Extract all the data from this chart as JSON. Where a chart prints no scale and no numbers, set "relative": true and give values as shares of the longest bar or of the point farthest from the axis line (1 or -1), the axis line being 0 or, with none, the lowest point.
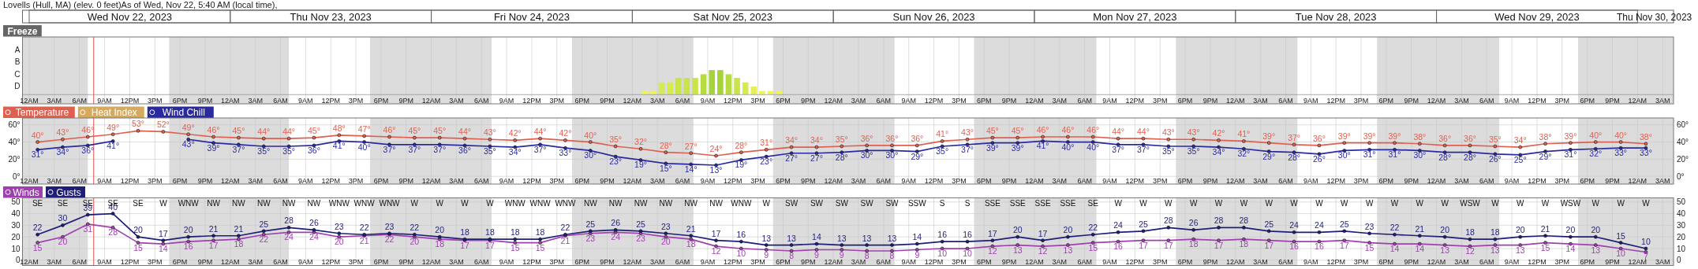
{
  "chart_data": [
    {
      "type": "bar",
      "relative": true,
      "title": "Lovells (Hull, MA) (elev. 0 feet)As of Wed, Nov 22, 5:40 AM (local time),",
      "subtitle": "Freeze",
      "annotations": [
        "A",
        "B",
        "C",
        "D"
      ],
      "x": [
        "2023-11-25T01:30",
        "2023-11-25T02:30",
        "2023-11-25T03:30",
        "2023-11-25T04:30",
        "2023-11-25T05:30",
        "2023-11-25T06:30",
        "2023-11-25T07:30",
        "2023-11-25T08:30",
        "2023-11-25T09:30",
        "2023-11-25T10:30",
        "2023-11-25T11:30",
        "2023-11-25T12:30",
        "2023-11-25T13:30",
        "2023-11-25T14:30",
        "2023-11-25T15:30",
        "2023-11-25T16:30",
        "2023-11-25T17:30"
      ],
      "values": [
        0.15,
        0.15,
        0.5,
        0.5,
        0.68,
        0.68,
        0.68,
        0.83,
        1,
        1,
        0.83,
        0.68,
        0.5,
        0.33,
        0.15,
        0.15,
        0.15
      ],
      "colors": [
        "#eef55a",
        "#eef55a",
        "#d6eb52",
        "#d6eb52",
        "#c8e44a",
        "#c8e44a",
        "#c8e44a",
        "#b6dc42",
        "#a4d43a",
        "#a4d43a",
        "#b6dc42",
        "#c8e44a",
        "#d6eb52",
        "#e4f055",
        "#eef55a",
        "#eef55a",
        "#eef55a"
      ],
      "xlim": [
        "2023-11-21T23:12",
        "2023-11-30T04:18"
      ],
      "xticks": [
        {
          "value": "2023-11-22T00:00",
          "label": "12AM"
        },
        {
          "value": "2023-11-22T03:00",
          "label": "3AM"
        },
        {
          "value": "2023-11-22T06:00",
          "label": "6AM"
        },
        {
          "value": "2023-11-22T09:00",
          "label": "9AM"
        },
        {
          "value": "2023-11-22T12:00",
          "label": "12PM"
        },
        {
          "value": "2023-11-22T15:00",
          "label": "3PM"
        },
        {
          "value": "2023-11-22T18:00",
          "label": "6PM"
        },
        {
          "value": "2023-11-22T21:00",
          "label": "9PM"
        },
        {
          "value": "2023-11-23T00:00",
          "label": "12AM"
        },
        {
          "value": "2023-11-23T03:00",
          "label": "3AM"
        },
        {
          "value": "2023-11-23T06:00",
          "label": "6AM"
        },
        {
          "value": "2023-11-23T09:00",
          "label": "9AM"
        },
        {
          "value": "2023-11-23T12:00",
          "label": "12PM"
        },
        {
          "value": "2023-11-23T15:00",
          "label": "3PM"
        },
        {
          "value": "2023-11-23T18:00",
          "label": "6PM"
        },
        {
          "value": "2023-11-23T21:00",
          "label": "9PM"
        },
        {
          "value": "2023-11-24T00:00",
          "label": "12AM"
        },
        {
          "value": "2023-11-24T03:00",
          "label": "3AM"
        },
        {
          "value": "2023-11-24T06:00",
          "label": "6AM"
        },
        {
          "value": "2023-11-24T09:00",
          "label": "9AM"
        },
        {
          "value": "2023-11-24T12:00",
          "label": "12PM"
        },
        {
          "value": "2023-11-24T15:00",
          "label": "3PM"
        },
        {
          "value": "2023-11-24T18:00",
          "label": "6PM"
        },
        {
          "value": "2023-11-24T21:00",
          "label": "9PM"
        },
        {
          "value": "2023-11-25T00:00",
          "label": "12AM"
        },
        {
          "value": "2023-11-25T03:00",
          "label": "3AM"
        },
        {
          "value": "2023-11-25T06:00",
          "label": "6AM"
        },
        {
          "value": "2023-11-25T09:00",
          "label": "9AM"
        },
        {
          "value": "2023-11-25T12:00",
          "label": "12PM"
        },
        {
          "value": "2023-11-25T15:00",
          "label": "3PM"
        },
        {
          "value": "2023-11-25T18:00",
          "label": "6PM"
        },
        {
          "value": "2023-11-25T21:00",
          "label": "9PM"
        },
        {
          "value": "2023-11-26T00:00",
          "label": "12AM"
        },
        {
          "value": "2023-11-26T03:00",
          "label": "3AM"
        },
        {
          "value": "2023-11-26T06:00",
          "label": "6AM"
        },
        {
          "value": "2023-11-26T09:00",
          "label": "9AM"
        },
        {
          "value": "2023-11-26T12:00",
          "label": "12PM"
        },
        {
          "value": "2023-11-26T15:00",
          "label": "3PM"
        },
        {
          "value": "2023-11-26T18:00",
          "label": "6PM"
        },
        {
          "value": "2023-11-26T21:00",
          "label": "9PM"
        },
        {
          "value": "2023-11-27T00:00",
          "label": "12AM"
        },
        {
          "value": "2023-11-27T03:00",
          "label": "3AM"
        },
        {
          "value": "2023-11-27T06:00",
          "label": "6AM"
        },
        {
          "value": "2023-11-27T09:00",
          "label": "9AM"
        },
        {
          "value": "2023-11-27T12:00",
          "label": "12PM"
        },
        {
          "value": "2023-11-27T15:00",
          "label": "3PM"
        },
        {
          "value": "2023-11-27T18:00",
          "label": "6PM"
        },
        {
          "value": "2023-11-27T21:00",
          "label": "9PM"
        },
        {
          "value": "2023-11-28T00:00",
          "label": "12AM"
        },
        {
          "value": "2023-11-28T03:00",
          "label": "3AM"
        },
        {
          "value": "2023-11-28T06:00",
          "label": "6AM"
        },
        {
          "value": "2023-11-28T09:00",
          "label": "9AM"
        },
        {
          "value": "2023-11-28T12:00",
          "label": "12PM"
        },
        {
          "value": "2023-11-28T15:00",
          "label": "3PM"
        },
        {
          "value": "2023-11-28T18:00",
          "label": "6PM"
        },
        {
          "value": "2023-11-28T21:00",
          "label": "9PM"
        },
        {
          "value": "2023-11-29T00:00",
          "label": "12AM"
        },
        {
          "value": "2023-11-29T03:00",
          "label": "3AM"
        },
        {
          "value": "2023-11-29T06:00",
          "label": "6AM"
        },
        {
          "value": "2023-11-29T09:00",
          "label": "9AM"
        },
        {
          "value": "2023-11-29T12:00",
          "label": "12PM"
        },
        {
          "value": "2023-11-29T15:00",
          "label": "3PM"
        },
        {
          "value": "2023-11-29T18:00",
          "label": "6PM"
        },
        {
          "value": "2023-11-29T21:00",
          "label": "9PM"
        },
        {
          "value": "2023-11-30T00:00",
          "label": "12AM"
        },
        {
          "value": "2023-11-30T03:00",
          "label": "3AM"
        }
      ],
      "x2lim": [
        "2023-11-21T23:12",
        "2023-11-30T04:18"
      ],
      "x2ticks": [
        {
          "value": "2023-11-22T12:00",
          "label": "Wed Nov 22, 2023"
        },
        {
          "value": "2023-11-23T12:00",
          "label": "Thu Nov 23, 2023"
        },
        {
          "value": "2023-11-24T12:00",
          "label": "Fri Nov 24, 2023"
        },
        {
          "value": "2023-11-25T12:00",
          "label": "Sat Nov 25, 2023"
        },
        {
          "value": "2023-11-26T12:00",
          "label": "Sun Nov 26, 2023"
        },
        {
          "value": "2023-11-27T12:00",
          "label": "Mon Nov 27, 2023"
        },
        {
          "value": "2023-11-28T12:00",
          "label": "Tue Nov 28, 2023"
        },
        {
          "value": "2023-11-29T12:00",
          "label": "Wed Nov 29, 2023"
        },
        {
          "value": "2023-11-30T02:00",
          "label": "Thu Nov 30, 2023"
        }
      ],
      "grid": "x",
      "bands": [
        {
          "axis": "x",
          "from": "2023-11-21T23:12",
          "to": "2023-11-22T07:00",
          "color": "#dcdcdc"
        },
        {
          "axis": "x",
          "from": "2023-11-22T16:42",
          "to": "2023-11-23T07:00",
          "color": "#dcdcdc"
        },
        {
          "axis": "x",
          "from": "2023-11-23T16:42",
          "to": "2023-11-24T07:12",
          "color": "#dcdcdc"
        },
        {
          "axis": "x",
          "from": "2023-11-24T16:48",
          "to": "2023-11-25T07:18",
          "color": "#dcdcdc"
        },
        {
          "axis": "x",
          "from": "2023-11-25T16:48",
          "to": "2023-11-26T07:18",
          "color": "#dcdcdc"
        },
        {
          "axis": "x",
          "from": "2023-11-26T16:48",
          "to": "2023-11-27T07:24",
          "color": "#dcdcdc"
        },
        {
          "axis": "x",
          "from": "2023-11-27T16:54",
          "to": "2023-11-28T07:24",
          "color": "#dcdcdc"
        },
        {
          "axis": "x",
          "from": "2023-11-28T16:54",
          "to": "2023-11-29T07:30",
          "color": "#dcdcdc"
        },
        {
          "axis": "x",
          "from": "2023-11-29T16:54",
          "to": "2023-11-30T04:18",
          "color": "#dcdcdc"
        }
      ],
      "ref_lines": [
        {
          "axis": "x",
          "value": "2023-11-22T07:42",
          "color": "#e05050"
        }
      ]
    },
    {
      "type": "line",
      "legend": "top left",
      "marker": "circle",
      "x": [
        "2023-11-22T01:00",
        "2023-11-22T04:00",
        "2023-11-22T07:00",
        "2023-11-22T10:00",
        "2023-11-22T13:00",
        "2023-11-22T16:00",
        "2023-11-22T19:00",
        "2023-11-22T22:00",
        "2023-11-23T01:00",
        "2023-11-23T04:00",
        "2023-11-23T07:00",
        "2023-11-23T10:00",
        "2023-11-23T13:00",
        "2023-11-23T16:00",
        "2023-11-23T19:00",
        "2023-11-23T22:00",
        "2023-11-24T01:00",
        "2023-11-24T04:00",
        "2023-11-24T07:00",
        "2023-11-24T10:00",
        "2023-11-24T13:00",
        "2023-11-24T16:00",
        "2023-11-24T19:00",
        "2023-11-24T22:00",
        "2023-11-25T01:00",
        "2023-11-25T04:00",
        "2023-11-25T07:00",
        "2023-11-25T10:00",
        "2023-11-25T13:00",
        "2023-11-25T16:00",
        "2023-11-25T19:00",
        "2023-11-25T22:00",
        "2023-11-26T01:00",
        "2023-11-26T04:00",
        "2023-11-26T07:00",
        "2023-11-26T10:00",
        "2023-11-26T13:00",
        "2023-11-26T16:00",
        "2023-11-26T19:00",
        "2023-11-26T22:00",
        "2023-11-27T01:00",
        "2023-11-27T04:00",
        "2023-11-27T07:00",
        "2023-11-27T10:00",
        "2023-11-27T13:00",
        "2023-11-27T16:00",
        "2023-11-27T19:00",
        "2023-11-27T22:00",
        "2023-11-28T01:00",
        "2023-11-28T04:00",
        "2023-11-28T07:00",
        "2023-11-28T10:00",
        "2023-11-28T13:00",
        "2023-11-28T16:00",
        "2023-11-28T19:00",
        "2023-11-28T22:00",
        "2023-11-29T01:00",
        "2023-11-29T04:00",
        "2023-11-29T07:00",
        "2023-11-29T10:00",
        "2023-11-29T13:00",
        "2023-11-29T16:00",
        "2023-11-29T19:00",
        "2023-11-29T22:00",
        "2023-11-30T01:00"
      ],
      "series": [
        {
          "name": "Temperature",
          "color": "#e06050",
          "values": [
            40,
            43,
            46,
            49,
            53,
            52,
            49,
            46,
            45,
            44,
            44,
            45,
            48,
            47,
            46,
            45,
            45,
            44,
            43,
            42,
            44,
            42,
            40,
            35,
            32,
            28,
            27,
            24,
            28,
            31,
            34,
            34,
            35,
            36,
            36,
            36,
            41,
            43,
            45,
            45,
            46,
            46,
            46,
            44,
            44,
            43,
            43,
            42,
            41,
            39,
            37,
            36,
            39,
            39,
            39,
            38,
            36,
            36,
            35,
            34,
            38,
            39,
            40,
            40,
            38
          ],
          "value_labels": [
            "40°",
            "43°",
            "46°",
            "49°",
            "53°",
            "52°",
            "49°",
            "46°",
            "45°",
            "44°",
            "44°",
            "45°",
            "48°",
            "47°",
            "46°",
            "45°",
            "45°",
            "44°",
            "43°",
            "42°",
            "44°",
            "42°",
            "40°",
            "35°",
            "32°",
            "28°",
            "27°",
            "24°",
            "28°",
            "31°",
            "34°",
            "34°",
            "35°",
            "36°",
            "36°",
            "36°",
            "41°",
            "43°",
            "45°",
            "45°",
            "46°",
            "46°",
            "46°",
            "44°",
            "44°",
            "43°",
            "43°",
            "42°",
            "41°",
            "39°",
            "37°",
            "36°",
            "39°",
            "39°",
            "39°",
            "38°",
            "36°",
            "36°",
            "35°",
            "34°",
            "38°",
            "39°",
            "40°",
            "40°",
            "38°"
          ]
        },
        {
          "name": "Heat Index",
          "color": "#d6aa5c",
          "values": [
            null,
            null,
            null,
            null,
            null,
            null,
            null,
            null,
            null,
            null,
            null,
            null,
            null,
            null,
            null,
            null,
            null,
            null,
            null,
            null,
            null,
            null,
            null,
            null,
            null,
            null,
            null,
            null,
            null,
            null,
            null,
            null,
            null,
            null,
            null,
            null,
            null,
            null,
            null,
            null,
            null,
            null,
            null,
            null,
            null,
            null,
            null,
            null,
            null,
            null,
            null,
            null,
            null,
            null,
            null,
            null,
            null,
            null,
            null,
            null,
            null,
            null,
            null,
            null,
            null
          ]
        },
        {
          "name": "Wind Chill",
          "color": "#2a2aa0",
          "values": [
            31,
            34,
            36,
            41,
            null,
            null,
            43,
            39,
            37,
            35,
            35,
            36,
            41,
            40,
            37,
            37,
            37,
            36,
            35,
            34,
            37,
            33,
            30,
            23,
            19,
            15,
            14,
            13,
            19,
            23,
            27,
            27,
            28,
            30,
            30,
            29,
            35,
            37,
            39,
            39,
            41,
            40,
            40,
            37,
            37,
            35,
            35,
            34,
            32,
            29,
            28,
            26,
            30,
            31,
            31,
            30,
            28,
            28,
            26,
            25,
            29,
            31,
            32,
            33,
            33
          ],
          "value_labels": [
            "31°",
            "34°",
            "36°",
            "41°",
            null,
            null,
            "43°",
            "39°",
            "37°",
            "35°",
            "35°",
            "36°",
            "41°",
            "40°",
            "37°",
            "37°",
            "37°",
            "36°",
            "35°",
            "34°",
            "37°",
            "33°",
            "30°",
            "23°",
            "19°",
            "15°",
            "14°",
            "13°",
            "19°",
            "23°",
            "27°",
            "27°",
            "28°",
            "30°",
            "30°",
            "29°",
            "35°",
            "37°",
            "39°",
            "39°",
            "41°",
            "40°",
            "40°",
            "37°",
            "37°",
            "35°",
            "35°",
            "34°",
            "32°",
            "29°",
            "28°",
            "26°",
            "30°",
            "31°",
            "31°",
            "30°",
            "28°",
            "28°",
            "26°",
            "25°",
            "29°",
            "31°",
            "32°",
            "33°",
            "33°"
          ]
        }
      ],
      "xlim": [
        "2023-11-21T23:12",
        "2023-11-30T04:18"
      ],
      "xticks": [
        {
          "value": "2023-11-22T00:00",
          "label": "12AM"
        },
        {
          "value": "2023-11-22T03:00",
          "label": "3AM"
        },
        {
          "value": "2023-11-22T06:00",
          "label": "6AM"
        },
        {
          "value": "2023-11-22T09:00",
          "label": "9AM"
        },
        {
          "value": "2023-11-22T12:00",
          "label": "12PM"
        },
        {
          "value": "2023-11-22T15:00",
          "label": "3PM"
        },
        {
          "value": "2023-11-22T18:00",
          "label": "6PM"
        },
        {
          "value": "2023-11-22T21:00",
          "label": "9PM"
        },
        {
          "value": "2023-11-23T00:00",
          "label": "12AM"
        },
        {
          "value": "2023-11-23T03:00",
          "label": "3AM"
        },
        {
          "value": "2023-11-23T06:00",
          "label": "6AM"
        },
        {
          "value": "2023-11-23T09:00",
          "label": "9AM"
        },
        {
          "value": "2023-11-23T12:00",
          "label": "12PM"
        },
        {
          "value": "2023-11-23T15:00",
          "label": "3PM"
        },
        {
          "value": "2023-11-23T18:00",
          "label": "6PM"
        },
        {
          "value": "2023-11-23T21:00",
          "label": "9PM"
        },
        {
          "value": "2023-11-24T00:00",
          "label": "12AM"
        },
        {
          "value": "2023-11-24T03:00",
          "label": "3AM"
        },
        {
          "value": "2023-11-24T06:00",
          "label": "6AM"
        },
        {
          "value": "2023-11-24T09:00",
          "label": "9AM"
        },
        {
          "value": "2023-11-24T12:00",
          "label": "12PM"
        },
        {
          "value": "2023-11-24T15:00",
          "label": "3PM"
        },
        {
          "value": "2023-11-24T18:00",
          "label": "6PM"
        },
        {
          "value": "2023-11-24T21:00",
          "label": "9PM"
        },
        {
          "value": "2023-11-25T00:00",
          "label": "12AM"
        },
        {
          "value": "2023-11-25T03:00",
          "label": "3AM"
        },
        {
          "value": "2023-11-25T06:00",
          "label": "6AM"
        },
        {
          "value": "2023-11-25T09:00",
          "label": "9AM"
        },
        {
          "value": "2023-11-25T12:00",
          "label": "12PM"
        },
        {
          "value": "2023-11-25T15:00",
          "label": "3PM"
        },
        {
          "value": "2023-11-25T18:00",
          "label": "6PM"
        },
        {
          "value": "2023-11-25T21:00",
          "label": "9PM"
        },
        {
          "value": "2023-11-26T00:00",
          "label": "12AM"
        },
        {
          "value": "2023-11-26T03:00",
          "label": "3AM"
        },
        {
          "value": "2023-11-26T06:00",
          "label": "6AM"
        },
        {
          "value": "2023-11-26T09:00",
          "label": "9AM"
        },
        {
          "value": "2023-11-26T12:00",
          "label": "12PM"
        },
        {
          "value": "2023-11-26T15:00",
          "label": "3PM"
        },
        {
          "value": "2023-11-26T18:00",
          "label": "6PM"
        },
        {
          "value": "2023-11-26T21:00",
          "label": "9PM"
        },
        {
          "value": "2023-11-27T00:00",
          "label": "12AM"
        },
        {
          "value": "2023-11-27T03:00",
          "label": "3AM"
        },
        {
          "value": "2023-11-27T06:00",
          "label": "6AM"
        },
        {
          "value": "2023-11-27T09:00",
          "label": "9AM"
        },
        {
          "value": "2023-11-27T12:00",
          "label": "12PM"
        },
        {
          "value": "2023-11-27T15:00",
          "label": "3PM"
        },
        {
          "value": "2023-11-27T18:00",
          "label": "6PM"
        },
        {
          "value": "2023-11-27T21:00",
          "label": "9PM"
        },
        {
          "value": "2023-11-28T00:00",
          "label": "12AM"
        },
        {
          "value": "2023-11-28T03:00",
          "label": "3AM"
        },
        {
          "value": "2023-11-28T06:00",
          "label": "6AM"
        },
        {
          "value": "2023-11-28T09:00",
          "label": "9AM"
        },
        {
          "value": "2023-11-28T12:00",
          "label": "12PM"
        },
        {
          "value": "2023-11-28T15:00",
          "label": "3PM"
        },
        {
          "value": "2023-11-28T18:00",
          "label": "6PM"
        },
        {
          "value": "2023-11-28T21:00",
          "label": "9PM"
        },
        {
          "value": "2023-11-29T00:00",
          "label": "12AM"
        },
        {
          "value": "2023-11-29T03:00",
          "label": "3AM"
        },
        {
          "value": "2023-11-29T06:00",
          "label": "6AM"
        },
        {
          "value": "2023-11-29T09:00",
          "label": "9AM"
        },
        {
          "value": "2023-11-29T12:00",
          "label": "12PM"
        },
        {
          "value": "2023-11-29T15:00",
          "label": "3PM"
        },
        {
          "value": "2023-11-29T18:00",
          "label": "6PM"
        },
        {
          "value": "2023-11-29T21:00",
          "label": "9PM"
        },
        {
          "value": "2023-11-30T00:00",
          "label": "12AM"
        },
        {
          "value": "2023-11-30T03:00",
          "label": "3AM"
        }
      ],
      "ylim": [
        -9,
        68
      ],
      "yticks": [
        {
          "value": 0,
          "label": "0°"
        },
        {
          "value": 20,
          "label": "20°"
        },
        {
          "value": 40,
          "label": "40°"
        },
        {
          "value": 60,
          "label": "60°"
        }
      ],
      "y2lim": [
        -9,
        68
      ],
      "y2ticks": [
        {
          "value": 0,
          "label": "0°"
        },
        {
          "value": 20,
          "label": "20°"
        },
        {
          "value": 40,
          "label": "40°"
        },
        {
          "value": 60,
          "label": "60°"
        }
      ],
      "grid": true,
      "bands": [
        {
          "axis": "x",
          "from": "2023-11-21T23:12",
          "to": "2023-11-22T07:00",
          "color": "#dcdcdc"
        },
        {
          "axis": "x",
          "from": "2023-11-22T16:42",
          "to": "2023-11-23T07:00",
          "color": "#dcdcdc"
        },
        {
          "axis": "x",
          "from": "2023-11-23T16:42",
          "to": "2023-11-24T07:12",
          "color": "#dcdcdc"
        },
        {
          "axis": "x",
          "from": "2023-11-24T16:48",
          "to": "2023-11-25T07:18",
          "color": "#dcdcdc"
        },
        {
          "axis": "x",
          "from": "2023-11-25T16:48",
          "to": "2023-11-26T07:18",
          "color": "#dcdcdc"
        },
        {
          "axis": "x",
          "from": "2023-11-26T16:48",
          "to": "2023-11-27T07:24",
          "color": "#dcdcdc"
        },
        {
          "axis": "x",
          "from": "2023-11-27T16:54",
          "to": "2023-11-28T07:24",
          "color": "#dcdcdc"
        },
        {
          "axis": "x",
          "from": "2023-11-28T16:54",
          "to": "2023-11-29T07:30",
          "color": "#dcdcdc"
        },
        {
          "axis": "x",
          "from": "2023-11-29T16:54",
          "to": "2023-11-30T04:18",
          "color": "#dcdcdc"
        }
      ],
      "ref_lines": [
        {
          "axis": "x",
          "value": "2023-11-22T07:42",
          "color": "#e05050"
        }
      ]
    },
    {
      "type": "line",
      "legend": "top left",
      "marker": "circle",
      "data_labels": true,
      "x": [
        "2023-11-22T01:00",
        "2023-11-22T04:00",
        "2023-11-22T07:00",
        "2023-11-22T10:00",
        "2023-11-22T13:00",
        "2023-11-22T16:00",
        "2023-11-22T19:00",
        "2023-11-22T22:00",
        "2023-11-23T01:00",
        "2023-11-23T04:00",
        "2023-11-23T07:00",
        "2023-11-23T10:00",
        "2023-11-23T13:00",
        "2023-11-23T16:00",
        "2023-11-23T19:00",
        "2023-11-23T22:00",
        "2023-11-24T01:00",
        "2023-11-24T04:00",
        "2023-11-24T07:00",
        "2023-11-24T10:00",
        "2023-11-24T13:00",
        "2023-11-24T16:00",
        "2023-11-24T19:00",
        "2023-11-24T22:00",
        "2023-11-25T01:00",
        "2023-11-25T04:00",
        "2023-11-25T07:00",
        "2023-11-25T10:00",
        "2023-11-25T13:00",
        "2023-11-25T16:00",
        "2023-11-25T19:00",
        "2023-11-25T22:00",
        "2023-11-26T01:00",
        "2023-11-26T04:00",
        "2023-11-26T07:00",
        "2023-11-26T10:00",
        "2023-11-26T13:00",
        "2023-11-26T16:00",
        "2023-11-26T19:00",
        "2023-11-26T22:00",
        "2023-11-27T01:00",
        "2023-11-27T04:00",
        "2023-11-27T07:00",
        "2023-11-27T10:00",
        "2023-11-27T13:00",
        "2023-11-27T16:00",
        "2023-11-27T19:00",
        "2023-11-27T22:00",
        "2023-11-28T01:00",
        "2023-11-28T04:00",
        "2023-11-28T07:00",
        "2023-11-28T10:00",
        "2023-11-28T13:00",
        "2023-11-28T16:00",
        "2023-11-28T19:00",
        "2023-11-28T22:00",
        "2023-11-29T01:00",
        "2023-11-29T04:00",
        "2023-11-29T07:00",
        "2023-11-29T10:00",
        "2023-11-29T13:00",
        "2023-11-29T16:00",
        "2023-11-29T19:00",
        "2023-11-29T22:00",
        "2023-11-30T01:00"
      ],
      "series": [
        {
          "name": "Winds",
          "color": "#a040b0",
          "values": [
            15,
            20,
            31,
            28,
            15,
            14,
            16,
            17,
            18,
            22,
            24,
            24,
            20,
            21,
            22,
            20,
            18,
            17,
            17,
            15,
            15,
            21,
            23,
            24,
            23,
            20,
            18,
            12,
            10,
            9,
            8,
            9,
            9,
            8,
            8,
            9,
            10,
            10,
            12,
            13,
            12,
            13,
            15,
            16,
            17,
            17,
            18,
            17,
            18,
            17,
            16,
            16,
            17,
            15,
            14,
            14,
            13,
            12,
            13,
            13,
            15,
            14,
            13,
            10,
            7
          ]
        },
        {
          "name": "Gusts",
          "color": "#1e1e78",
          "values": [
            22,
            30,
            39,
            40,
            20,
            17,
            20,
            21,
            21,
            25,
            28,
            26,
            23,
            22,
            23,
            22,
            20,
            18,
            18,
            18,
            18,
            22,
            25,
            26,
            25,
            23,
            21,
            17,
            16,
            13,
            13,
            14,
            13,
            13,
            13,
            14,
            16,
            16,
            17,
            20,
            17,
            20,
            22,
            24,
            25,
            28,
            26,
            28,
            28,
            25,
            24,
            24,
            25,
            23,
            22,
            21,
            20,
            18,
            18,
            20,
            21,
            20,
            20,
            15,
            10
          ]
        }
      ],
      "annotations": [
        "SE",
        "SE",
        "SE",
        "SE",
        "SE",
        "W",
        "WNW",
        "NW",
        "NW",
        "NW",
        "NW",
        "NW",
        "WNW",
        "WNW",
        "WNW",
        "W",
        "W",
        "W",
        "W",
        "WNW",
        "WNW",
        "WNW",
        "NW",
        "NW",
        "NW",
        "NW",
        "NW",
        "NW",
        "WNW",
        "W",
        "SW",
        "SW",
        "SW",
        "SW",
        "SW",
        "SSW",
        "S",
        "S",
        "SSE",
        "SSE",
        "SSE",
        "SSE",
        "SE",
        "W",
        "W",
        "W",
        "W",
        "W",
        "W",
        "W",
        "W",
        "W",
        "W",
        "W",
        "W",
        "W",
        "W",
        "WSW",
        "W",
        "W",
        "W",
        "WSW",
        "W",
        "W",
        "W"
      ],
      "xlim": [
        "2023-11-21T23:12",
        "2023-11-30T04:18"
      ],
      "xticks": [
        {
          "value": "2023-11-22T00:00",
          "label": "12AM"
        },
        {
          "value": "2023-11-22T03:00",
          "label": "3AM"
        },
        {
          "value": "2023-11-22T06:00",
          "label": "6AM"
        },
        {
          "value": "2023-11-22T09:00",
          "label": "9AM"
        },
        {
          "value": "2023-11-22T12:00",
          "label": "12PM"
        },
        {
          "value": "2023-11-22T15:00",
          "label": "3PM"
        },
        {
          "value": "2023-11-22T18:00",
          "label": "6PM"
        },
        {
          "value": "2023-11-22T21:00",
          "label": "9PM"
        },
        {
          "value": "2023-11-23T00:00",
          "label": "12AM"
        },
        {
          "value": "2023-11-23T03:00",
          "label": "3AM"
        },
        {
          "value": "2023-11-23T06:00",
          "label": "6AM"
        },
        {
          "value": "2023-11-23T09:00",
          "label": "9AM"
        },
        {
          "value": "2023-11-23T12:00",
          "label": "12PM"
        },
        {
          "value": "2023-11-23T15:00",
          "label": "3PM"
        },
        {
          "value": "2023-11-23T18:00",
          "label": "6PM"
        },
        {
          "value": "2023-11-23T21:00",
          "label": "9PM"
        },
        {
          "value": "2023-11-24T00:00",
          "label": "12AM"
        },
        {
          "value": "2023-11-24T03:00",
          "label": "3AM"
        },
        {
          "value": "2023-11-24T06:00",
          "label": "6AM"
        },
        {
          "value": "2023-11-24T09:00",
          "label": "9AM"
        },
        {
          "value": "2023-11-24T12:00",
          "label": "12PM"
        },
        {
          "value": "2023-11-24T15:00",
          "label": "3PM"
        },
        {
          "value": "2023-11-24T18:00",
          "label": "6PM"
        },
        {
          "value": "2023-11-24T21:00",
          "label": "9PM"
        },
        {
          "value": "2023-11-25T00:00",
          "label": "12AM"
        },
        {
          "value": "2023-11-25T03:00",
          "label": "3AM"
        },
        {
          "value": "2023-11-25T06:00",
          "label": "6AM"
        },
        {
          "value": "2023-11-25T09:00",
          "label": "9AM"
        },
        {
          "value": "2023-11-25T12:00",
          "label": "12PM"
        },
        {
          "value": "2023-11-25T15:00",
          "label": "3PM"
        },
        {
          "value": "2023-11-25T18:00",
          "label": "6PM"
        },
        {
          "value": "2023-11-25T21:00",
          "label": "9PM"
        },
        {
          "value": "2023-11-26T00:00",
          "label": "12AM"
        },
        {
          "value": "2023-11-26T03:00",
          "label": "3AM"
        },
        {
          "value": "2023-11-26T06:00",
          "label": "6AM"
        },
        {
          "value": "2023-11-26T09:00",
          "label": "9AM"
        },
        {
          "value": "2023-11-26T12:00",
          "label": "12PM"
        },
        {
          "value": "2023-11-26T15:00",
          "label": "3PM"
        },
        {
          "value": "2023-11-26T18:00",
          "label": "6PM"
        },
        {
          "value": "2023-11-26T21:00",
          "label": "9PM"
        },
        {
          "value": "2023-11-27T00:00",
          "label": "12AM"
        },
        {
          "value": "2023-11-27T03:00",
          "label": "3AM"
        },
        {
          "value": "2023-11-27T06:00",
          "label": "6AM"
        },
        {
          "value": "2023-11-27T09:00",
          "label": "9AM"
        },
        {
          "value": "2023-11-27T12:00",
          "label": "12PM"
        },
        {
          "value": "2023-11-27T15:00",
          "label": "3PM"
        },
        {
          "value": "2023-11-27T18:00",
          "label": "6PM"
        },
        {
          "value": "2023-11-27T21:00",
          "label": "9PM"
        },
        {
          "value": "2023-11-28T00:00",
          "label": "12AM"
        },
        {
          "value": "2023-11-28T03:00",
          "label": "3AM"
        },
        {
          "value": "2023-11-28T06:00",
          "label": "6AM"
        },
        {
          "value": "2023-11-28T09:00",
          "label": "9AM"
        },
        {
          "value": "2023-11-28T12:00",
          "label": "12PM"
        },
        {
          "value": "2023-11-28T15:00",
          "label": "3PM"
        },
        {
          "value": "2023-11-28T18:00",
          "label": "6PM"
        },
        {
          "value": "2023-11-28T21:00",
          "label": "9PM"
        },
        {
          "value": "2023-11-29T00:00",
          "label": "12AM"
        },
        {
          "value": "2023-11-29T03:00",
          "label": "3AM"
        },
        {
          "value": "2023-11-29T06:00",
          "label": "6AM"
        },
        {
          "value": "2023-11-29T09:00",
          "label": "9AM"
        },
        {
          "value": "2023-11-29T12:00",
          "label": "12PM"
        },
        {
          "value": "2023-11-29T15:00",
          "label": "3PM"
        },
        {
          "value": "2023-11-29T18:00",
          "label": "6PM"
        },
        {
          "value": "2023-11-29T21:00",
          "label": "9PM"
        },
        {
          "value": "2023-11-30T00:00",
          "label": "12AM"
        },
        {
          "value": "2023-11-30T03:00",
          "label": "3AM"
        }
      ],
      "ylim": [
        -4.5,
        53.5
      ],
      "yticks": [
        0,
        10,
        20,
        30,
        40,
        50
      ],
      "y2lim": [
        -4.5,
        53.5
      ],
      "y2ticks": [
        0,
        10,
        20,
        30,
        40,
        50
      ],
      "grid": true,
      "bands": [
        {
          "axis": "x",
          "from": "2023-11-21T23:12",
          "to": "2023-11-22T07:00",
          "color": "#dcdcdc"
        },
        {
          "axis": "x",
          "from": "2023-11-22T16:42",
          "to": "2023-11-23T07:00",
          "color": "#dcdcdc"
        },
        {
          "axis": "x",
          "from": "2023-11-23T16:42",
          "to": "2023-11-24T07:12",
          "color": "#dcdcdc"
        },
        {
          "axis": "x",
          "from": "2023-11-24T16:48",
          "to": "2023-11-25T07:18",
          "color": "#dcdcdc"
        },
        {
          "axis": "x",
          "from": "2023-11-25T16:48",
          "to": "2023-11-26T07:18",
          "color": "#dcdcdc"
        },
        {
          "axis": "x",
          "from": "2023-11-26T16:48",
          "to": "2023-11-27T07:24",
          "color": "#dcdcdc"
        },
        {
          "axis": "x",
          "from": "2023-11-27T16:54",
          "to": "2023-11-28T07:24",
          "color": "#dcdcdc"
        },
        {
          "axis": "x",
          "from": "2023-11-28T16:54",
          "to": "2023-11-29T07:30",
          "color": "#dcdcdc"
        },
        {
          "axis": "x",
          "from": "2023-11-29T16:54",
          "to": "2023-11-30T04:18",
          "color": "#dcdcdc"
        }
      ],
      "ref_lines": [
        {
          "axis": "x",
          "value": "2023-11-22T07:42",
          "color": "#e05050"
        }
      ]
    }
  ]
}
